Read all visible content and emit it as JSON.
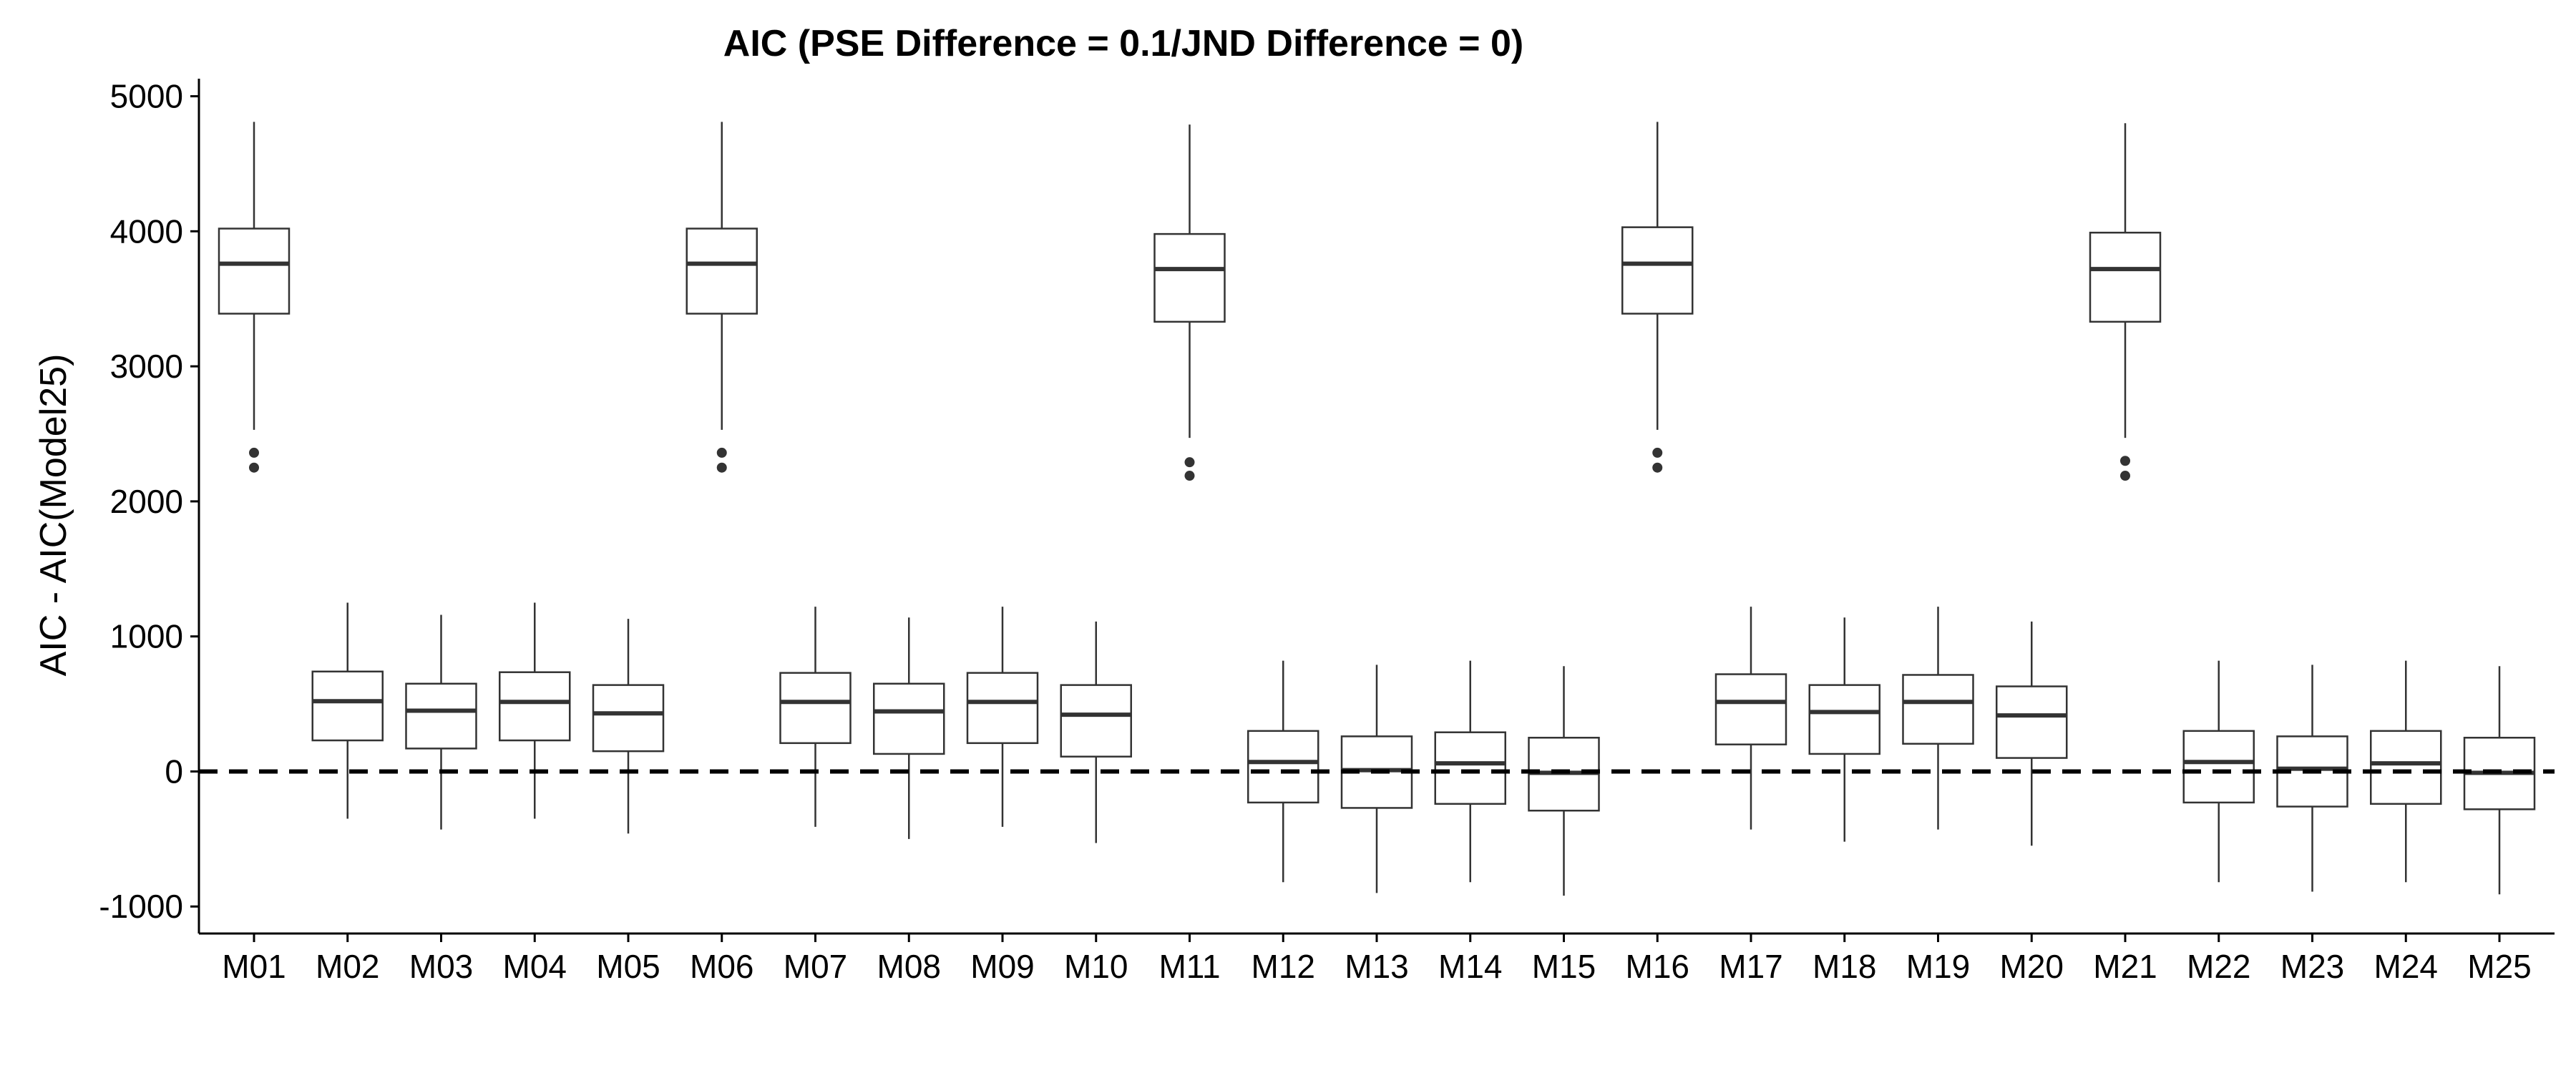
{
  "chart_data": {
    "type": "boxplot",
    "title": "AIC (PSE Difference = 0.1/JND Difference = 0)",
    "xlabel": "",
    "ylabel": "AIC - AIC(Model25)",
    "ylim": [
      -1200,
      5130
    ],
    "yticks": [
      -1000,
      0,
      1000,
      2000,
      3000,
      4000,
      5000
    ],
    "ytick_labels": [
      "-1000",
      "0",
      "1000",
      "2000",
      "3000",
      "4000",
      "5000"
    ],
    "reference_line": {
      "y": 0,
      "style": "dashed"
    },
    "grid": false,
    "categories": [
      "M01",
      "M02",
      "M03",
      "M04",
      "M05",
      "M06",
      "M07",
      "M08",
      "M09",
      "M10",
      "M11",
      "M12",
      "M13",
      "M14",
      "M15",
      "M16",
      "M17",
      "M18",
      "M19",
      "M20",
      "M21",
      "M22",
      "M23",
      "M24",
      "M25"
    ],
    "boxes": [
      {
        "min": 2530,
        "q1": 3390,
        "median": 3760,
        "q3": 4020,
        "max": 4810,
        "outliers": [
          2360,
          2250
        ]
      },
      {
        "min": -350,
        "q1": 230,
        "median": 520,
        "q3": 740,
        "max": 1250,
        "outliers": []
      },
      {
        "min": -430,
        "q1": 170,
        "median": 450,
        "q3": 650,
        "max": 1160,
        "outliers": []
      },
      {
        "min": -350,
        "q1": 230,
        "median": 515,
        "q3": 735,
        "max": 1250,
        "outliers": []
      },
      {
        "min": -460,
        "q1": 150,
        "median": 430,
        "q3": 640,
        "max": 1130,
        "outliers": []
      },
      {
        "min": 2530,
        "q1": 3390,
        "median": 3760,
        "q3": 4020,
        "max": 4810,
        "outliers": [
          2360,
          2250
        ]
      },
      {
        "min": -410,
        "q1": 210,
        "median": 515,
        "q3": 730,
        "max": 1220,
        "outliers": []
      },
      {
        "min": -500,
        "q1": 130,
        "median": 445,
        "q3": 650,
        "max": 1140,
        "outliers": []
      },
      {
        "min": -410,
        "q1": 210,
        "median": 515,
        "q3": 730,
        "max": 1220,
        "outliers": []
      },
      {
        "min": -530,
        "q1": 110,
        "median": 420,
        "q3": 640,
        "max": 1110,
        "outliers": []
      },
      {
        "min": 2470,
        "q1": 3330,
        "median": 3720,
        "q3": 3980,
        "max": 4790,
        "outliers": [
          2290,
          2190
        ]
      },
      {
        "min": -820,
        "q1": -230,
        "median": 70,
        "q3": 300,
        "max": 820,
        "outliers": []
      },
      {
        "min": -900,
        "q1": -270,
        "median": 10,
        "q3": 260,
        "max": 790,
        "outliers": []
      },
      {
        "min": -820,
        "q1": -240,
        "median": 60,
        "q3": 290,
        "max": 820,
        "outliers": []
      },
      {
        "min": -920,
        "q1": -290,
        "median": -10,
        "q3": 250,
        "max": 780,
        "outliers": []
      },
      {
        "min": 2530,
        "q1": 3390,
        "median": 3760,
        "q3": 4030,
        "max": 4810,
        "outliers": [
          2360,
          2250
        ]
      },
      {
        "min": -430,
        "q1": 200,
        "median": 515,
        "q3": 720,
        "max": 1220,
        "outliers": []
      },
      {
        "min": -520,
        "q1": 130,
        "median": 440,
        "q3": 640,
        "max": 1140,
        "outliers": []
      },
      {
        "min": -430,
        "q1": 205,
        "median": 515,
        "q3": 715,
        "max": 1220,
        "outliers": []
      },
      {
        "min": -550,
        "q1": 100,
        "median": 415,
        "q3": 630,
        "max": 1110,
        "outliers": []
      },
      {
        "min": 2470,
        "q1": 3330,
        "median": 3720,
        "q3": 3990,
        "max": 4800,
        "outliers": [
          2300,
          2190
        ]
      },
      {
        "min": -820,
        "q1": -230,
        "median": 70,
        "q3": 300,
        "max": 820,
        "outliers": []
      },
      {
        "min": -890,
        "q1": -260,
        "median": 20,
        "q3": 260,
        "max": 790,
        "outliers": []
      },
      {
        "min": -820,
        "q1": -240,
        "median": 60,
        "q3": 300,
        "max": 820,
        "outliers": []
      },
      {
        "min": -910,
        "q1": -280,
        "median": -10,
        "q3": 250,
        "max": 780,
        "outliers": []
      }
    ]
  }
}
